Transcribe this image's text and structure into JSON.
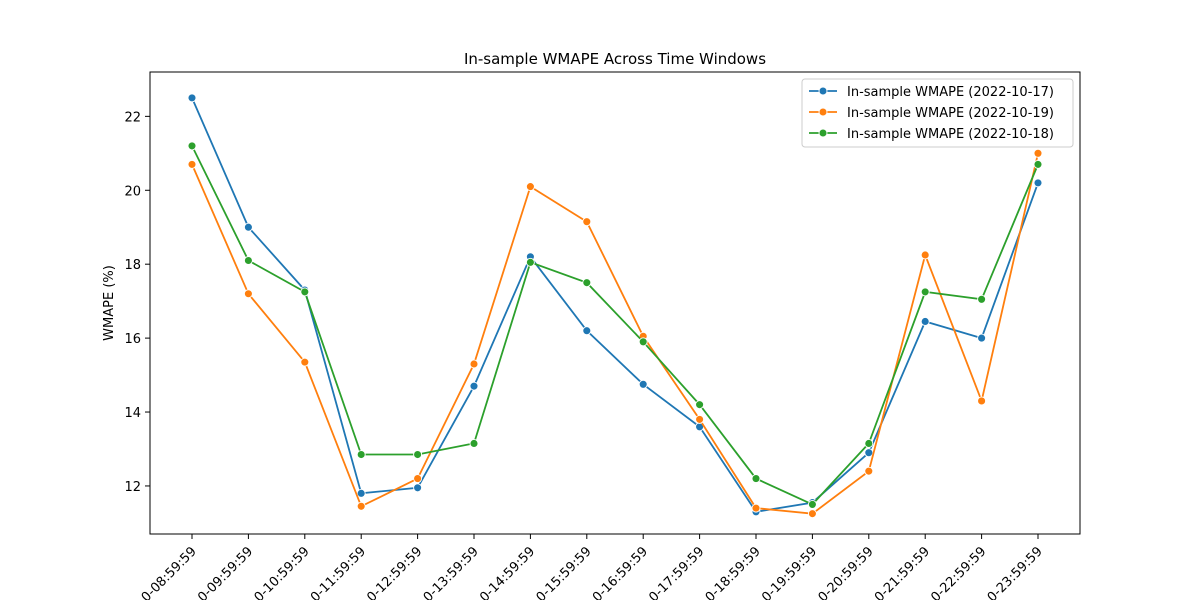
{
  "chart_data": {
    "type": "line",
    "title": "In-sample WMAPE Across Time Windows",
    "xlabel": "",
    "ylabel": "WMAPE (%)",
    "ylim": [
      10.7,
      23.2
    ],
    "yticks": [
      12,
      14,
      16,
      18,
      20,
      22
    ],
    "ytick_labels": [
      "12",
      "14",
      "16",
      "18",
      "20",
      "22"
    ],
    "grid": false,
    "legend_position": "top-right",
    "categories": [
      "0-08:59:59",
      "0-09:59:59",
      "0-10:59:59",
      "0-11:59:59",
      "0-12:59:59",
      "0-13:59:59",
      "0-14:59:59",
      "0-15:59:59",
      "0-16:59:59",
      "0-17:59:59",
      "0-18:59:59",
      "0-19:59:59",
      "0-20:59:59",
      "0-21:59:59",
      "0-22:59:59",
      "0-23:59:59"
    ],
    "series": [
      {
        "name": "In-sample WMAPE (2022-10-17)",
        "color": "#1f77b4",
        "values": [
          22.5,
          19.0,
          17.3,
          11.8,
          11.95,
          14.7,
          18.2,
          16.2,
          14.75,
          13.6,
          11.3,
          11.55,
          12.9,
          16.45,
          16.0,
          20.2
        ]
      },
      {
        "name": "In-sample WMAPE (2022-10-19)",
        "color": "#ff7f0e",
        "values": [
          20.7,
          17.2,
          15.35,
          11.45,
          12.2,
          15.3,
          20.1,
          19.15,
          16.05,
          13.8,
          11.4,
          11.25,
          12.4,
          18.25,
          14.3,
          21.0
        ]
      },
      {
        "name": "In-sample WMAPE (2022-10-18)",
        "color": "#2ca02c",
        "values": [
          21.2,
          18.1,
          17.25,
          12.85,
          12.85,
          13.15,
          18.05,
          17.5,
          15.9,
          14.2,
          12.2,
          11.5,
          13.15,
          17.25,
          17.05,
          20.7
        ]
      }
    ]
  }
}
